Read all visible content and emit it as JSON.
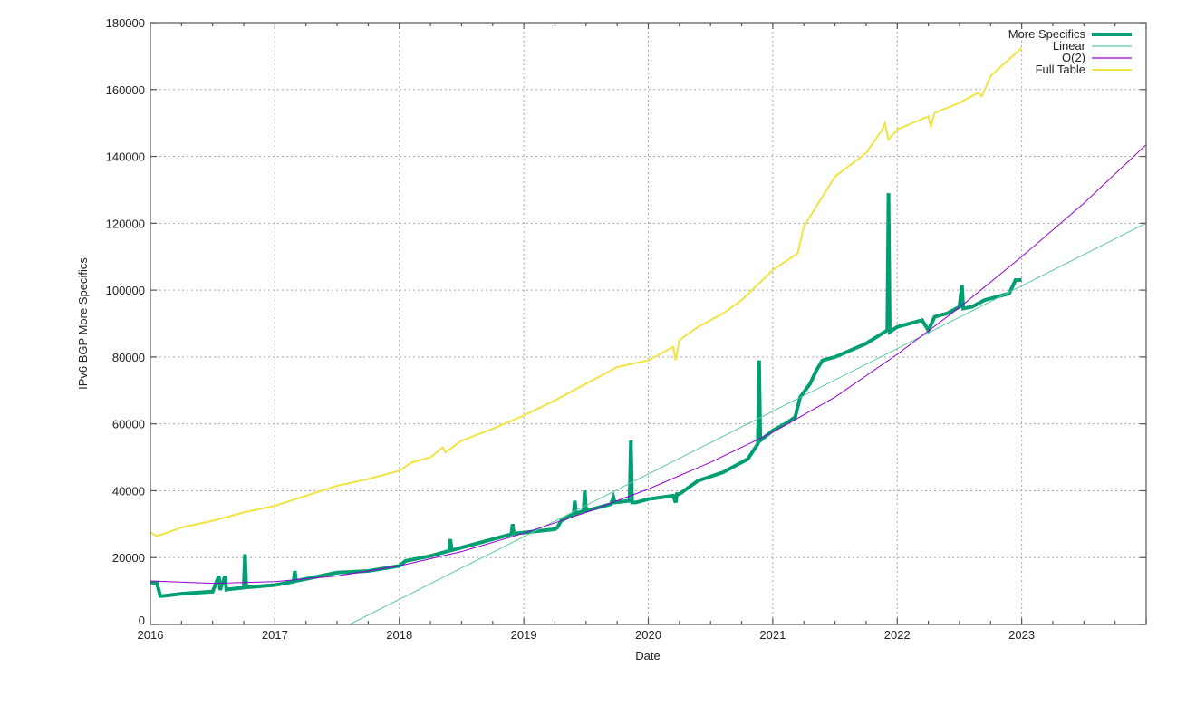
{
  "chart_data": {
    "type": "line",
    "title": "",
    "xlabel": "Date",
    "ylabel": "IPv6 BGP More Specifics",
    "xlim": [
      2016,
      2024
    ],
    "ylim": [
      0,
      180000
    ],
    "grid": true,
    "legend_position": "top-right",
    "x_ticks": [
      "2016",
      "2017",
      "2018",
      "2019",
      "2020",
      "2021",
      "2022",
      "2023"
    ],
    "y_ticks": [
      "0",
      "20000",
      "40000",
      "60000",
      "80000",
      "100000",
      "120000",
      "140000",
      "160000",
      "180000"
    ],
    "series": [
      {
        "name": "More Specifics",
        "color": "#009e73",
        "width": 4,
        "x": [
          2016.0,
          2016.05,
          2016.08,
          2016.1,
          2016.25,
          2016.5,
          2016.55,
          2016.56,
          2016.6,
          2016.61,
          2016.62,
          2016.75,
          2016.76,
          2016.77,
          2017.0,
          2017.15,
          2017.16,
          2017.17,
          2017.5,
          2017.75,
          2018.0,
          2018.05,
          2018.25,
          2018.4,
          2018.41,
          2018.42,
          2018.45,
          2018.5,
          2018.75,
          2018.9,
          2018.91,
          2018.92,
          2019.0,
          2019.25,
          2019.27,
          2019.3,
          2019.4,
          2019.41,
          2019.42,
          2019.48,
          2019.49,
          2019.5,
          2019.7,
          2019.72,
          2019.73,
          2019.85,
          2019.86,
          2019.87,
          2019.9,
          2020.0,
          2020.2,
          2020.22,
          2020.23,
          2020.25,
          2020.4,
          2020.6,
          2020.8,
          2020.88,
          2020.89,
          2020.9,
          2021.0,
          2021.1,
          2021.18,
          2021.22,
          2021.3,
          2021.35,
          2021.4,
          2021.5,
          2021.75,
          2021.92,
          2021.93,
          2021.94,
          2022.0,
          2022.2,
          2022.25,
          2022.3,
          2022.4,
          2022.5,
          2022.52,
          2022.53,
          2022.6,
          2022.7,
          2022.9,
          2022.95,
          2023.0
        ],
        "y": [
          12500,
          12500,
          8500,
          8500,
          9200,
          9800,
          14500,
          10300,
          14500,
          10400,
          10500,
          11000,
          21000,
          11100,
          11800,
          12800,
          16000,
          13000,
          15500,
          16000,
          17500,
          19000,
          20500,
          22000,
          25500,
          22200,
          22500,
          23000,
          25500,
          27000,
          30000,
          27200,
          27500,
          28500,
          29000,
          31000,
          33000,
          37000,
          33200,
          34000,
          40000,
          34000,
          36000,
          38000,
          36500,
          37000,
          55000,
          36500,
          36500,
          37500,
          38500,
          36500,
          39000,
          39000,
          43000,
          45500,
          49500,
          54000,
          79000,
          55000,
          58000,
          60000,
          62000,
          68000,
          72000,
          76000,
          79000,
          80000,
          84000,
          88000,
          129000,
          87500,
          89000,
          91000,
          88000,
          92000,
          93000,
          95000,
          101500,
          94500,
          95000,
          97000,
          99000,
          103000,
          103000
        ]
      },
      {
        "name": "Linear",
        "color": "#5ec9a0",
        "width": 1,
        "x": [
          2017.6,
          2024.0
        ],
        "y": [
          0,
          120000
        ]
      },
      {
        "name": "O(2)",
        "color": "#9400d3",
        "width": 1,
        "x": [
          2016.0,
          2016.5,
          2017.0,
          2017.5,
          2018.0,
          2018.5,
          2019.0,
          2019.5,
          2020.0,
          2020.5,
          2021.0,
          2021.5,
          2022.0,
          2022.5,
          2023.0,
          2023.5,
          2024.0
        ],
        "y": [
          13000,
          12300,
          12800,
          14500,
          17500,
          21800,
          27300,
          33500,
          40500,
          48500,
          57500,
          68000,
          80800,
          94800,
          110000,
          126000,
          143500
        ]
      },
      {
        "name": "Full Table",
        "color": "#f0e442",
        "width": 2,
        "x": [
          2016.0,
          2016.05,
          2016.1,
          2016.25,
          2016.5,
          2016.75,
          2017.0,
          2017.25,
          2017.5,
          2017.75,
          2018.0,
          2018.1,
          2018.25,
          2018.35,
          2018.37,
          2018.5,
          2018.75,
          2019.0,
          2019.25,
          2019.5,
          2019.75,
          2020.0,
          2020.1,
          2020.2,
          2020.22,
          2020.25,
          2020.4,
          2020.6,
          2020.75,
          2021.0,
          2021.2,
          2021.25,
          2021.4,
          2021.5,
          2021.75,
          2021.88,
          2021.9,
          2021.93,
          2022.0,
          2022.25,
          2022.27,
          2022.3,
          2022.5,
          2022.65,
          2022.68,
          2022.75,
          2023.0
        ],
        "y": [
          27500,
          26500,
          27000,
          29000,
          31000,
          33500,
          35500,
          38500,
          41500,
          43500,
          46000,
          48500,
          50000,
          53000,
          51500,
          55000,
          58500,
          62500,
          67000,
          72000,
          77000,
          79000,
          81000,
          83000,
          79000,
          85000,
          89000,
          93000,
          97000,
          106000,
          111000,
          119000,
          128000,
          134000,
          141000,
          148000,
          150000,
          145000,
          148000,
          152000,
          149000,
          153000,
          156000,
          159000,
          158000,
          164000,
          172500
        ]
      }
    ]
  },
  "legend": {
    "items": [
      {
        "label": "More Specifics",
        "color": "#009e73"
      },
      {
        "label": "Linear",
        "color": "#5ec9a0"
      },
      {
        "label": "O(2)",
        "color": "#9400d3"
      },
      {
        "label": "Full Table",
        "color": "#f0e442"
      }
    ]
  }
}
